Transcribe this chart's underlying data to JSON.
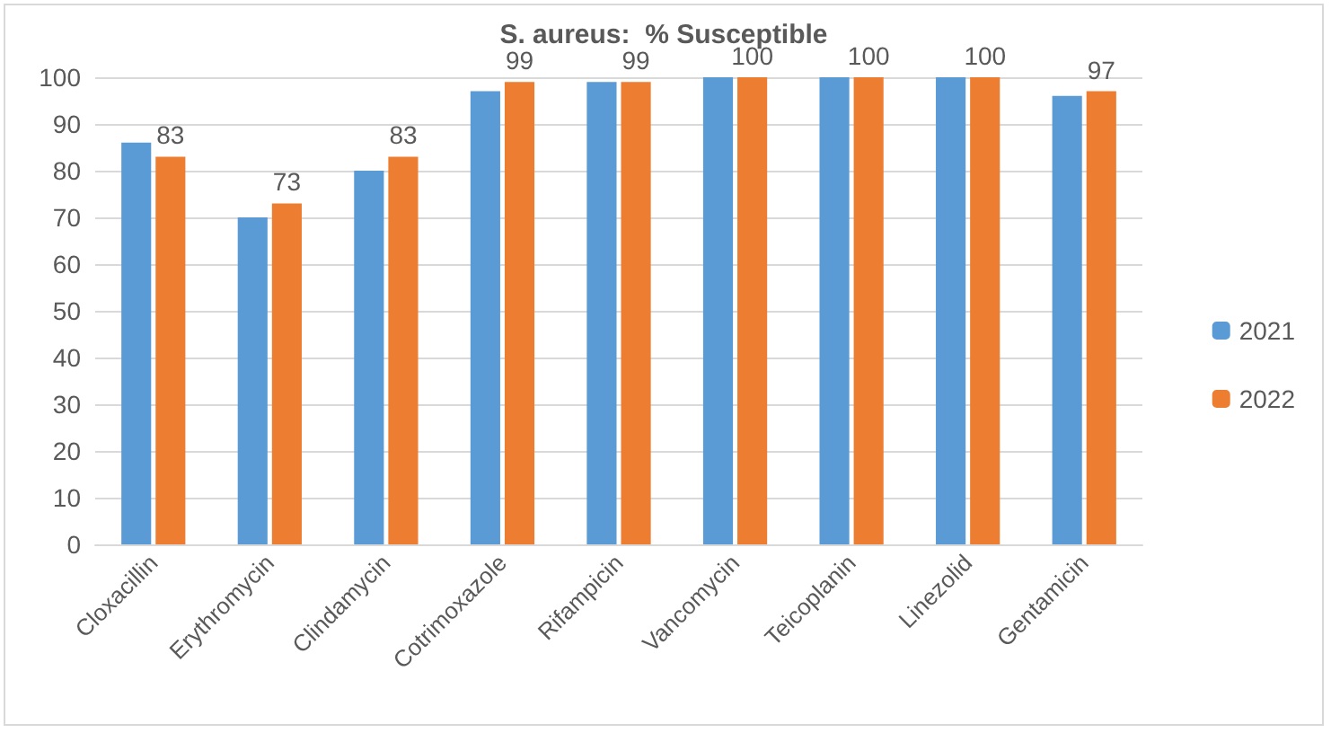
{
  "chart_data": {
    "type": "bar",
    "title": "S. aureus:  % Susceptible",
    "categories": [
      "Cloxacillin",
      "Erythromycin",
      "Clindamycin",
      "Cotrimoxazole",
      "Rifampicin",
      "Vancomycin",
      "Teicoplanin",
      "Linezolid",
      "Gentamicin"
    ],
    "series": [
      {
        "name": "2021",
        "color": "#5b9bd5",
        "values": [
          86,
          70,
          80,
          97,
          99,
          100,
          100,
          100,
          96
        ]
      },
      {
        "name": "2022",
        "color": "#ed7d31",
        "values": [
          83,
          73,
          83,
          99,
          99,
          100,
          100,
          100,
          97
        ],
        "value_labels": [
          "83",
          "73",
          "83",
          "99",
          "99",
          "100",
          "100",
          "100",
          "97"
        ]
      }
    ],
    "ylim": [
      0,
      100
    ],
    "yticks": [
      0,
      10,
      20,
      30,
      40,
      50,
      60,
      70,
      80,
      90,
      100
    ],
    "grid": "y",
    "legend": "right"
  }
}
